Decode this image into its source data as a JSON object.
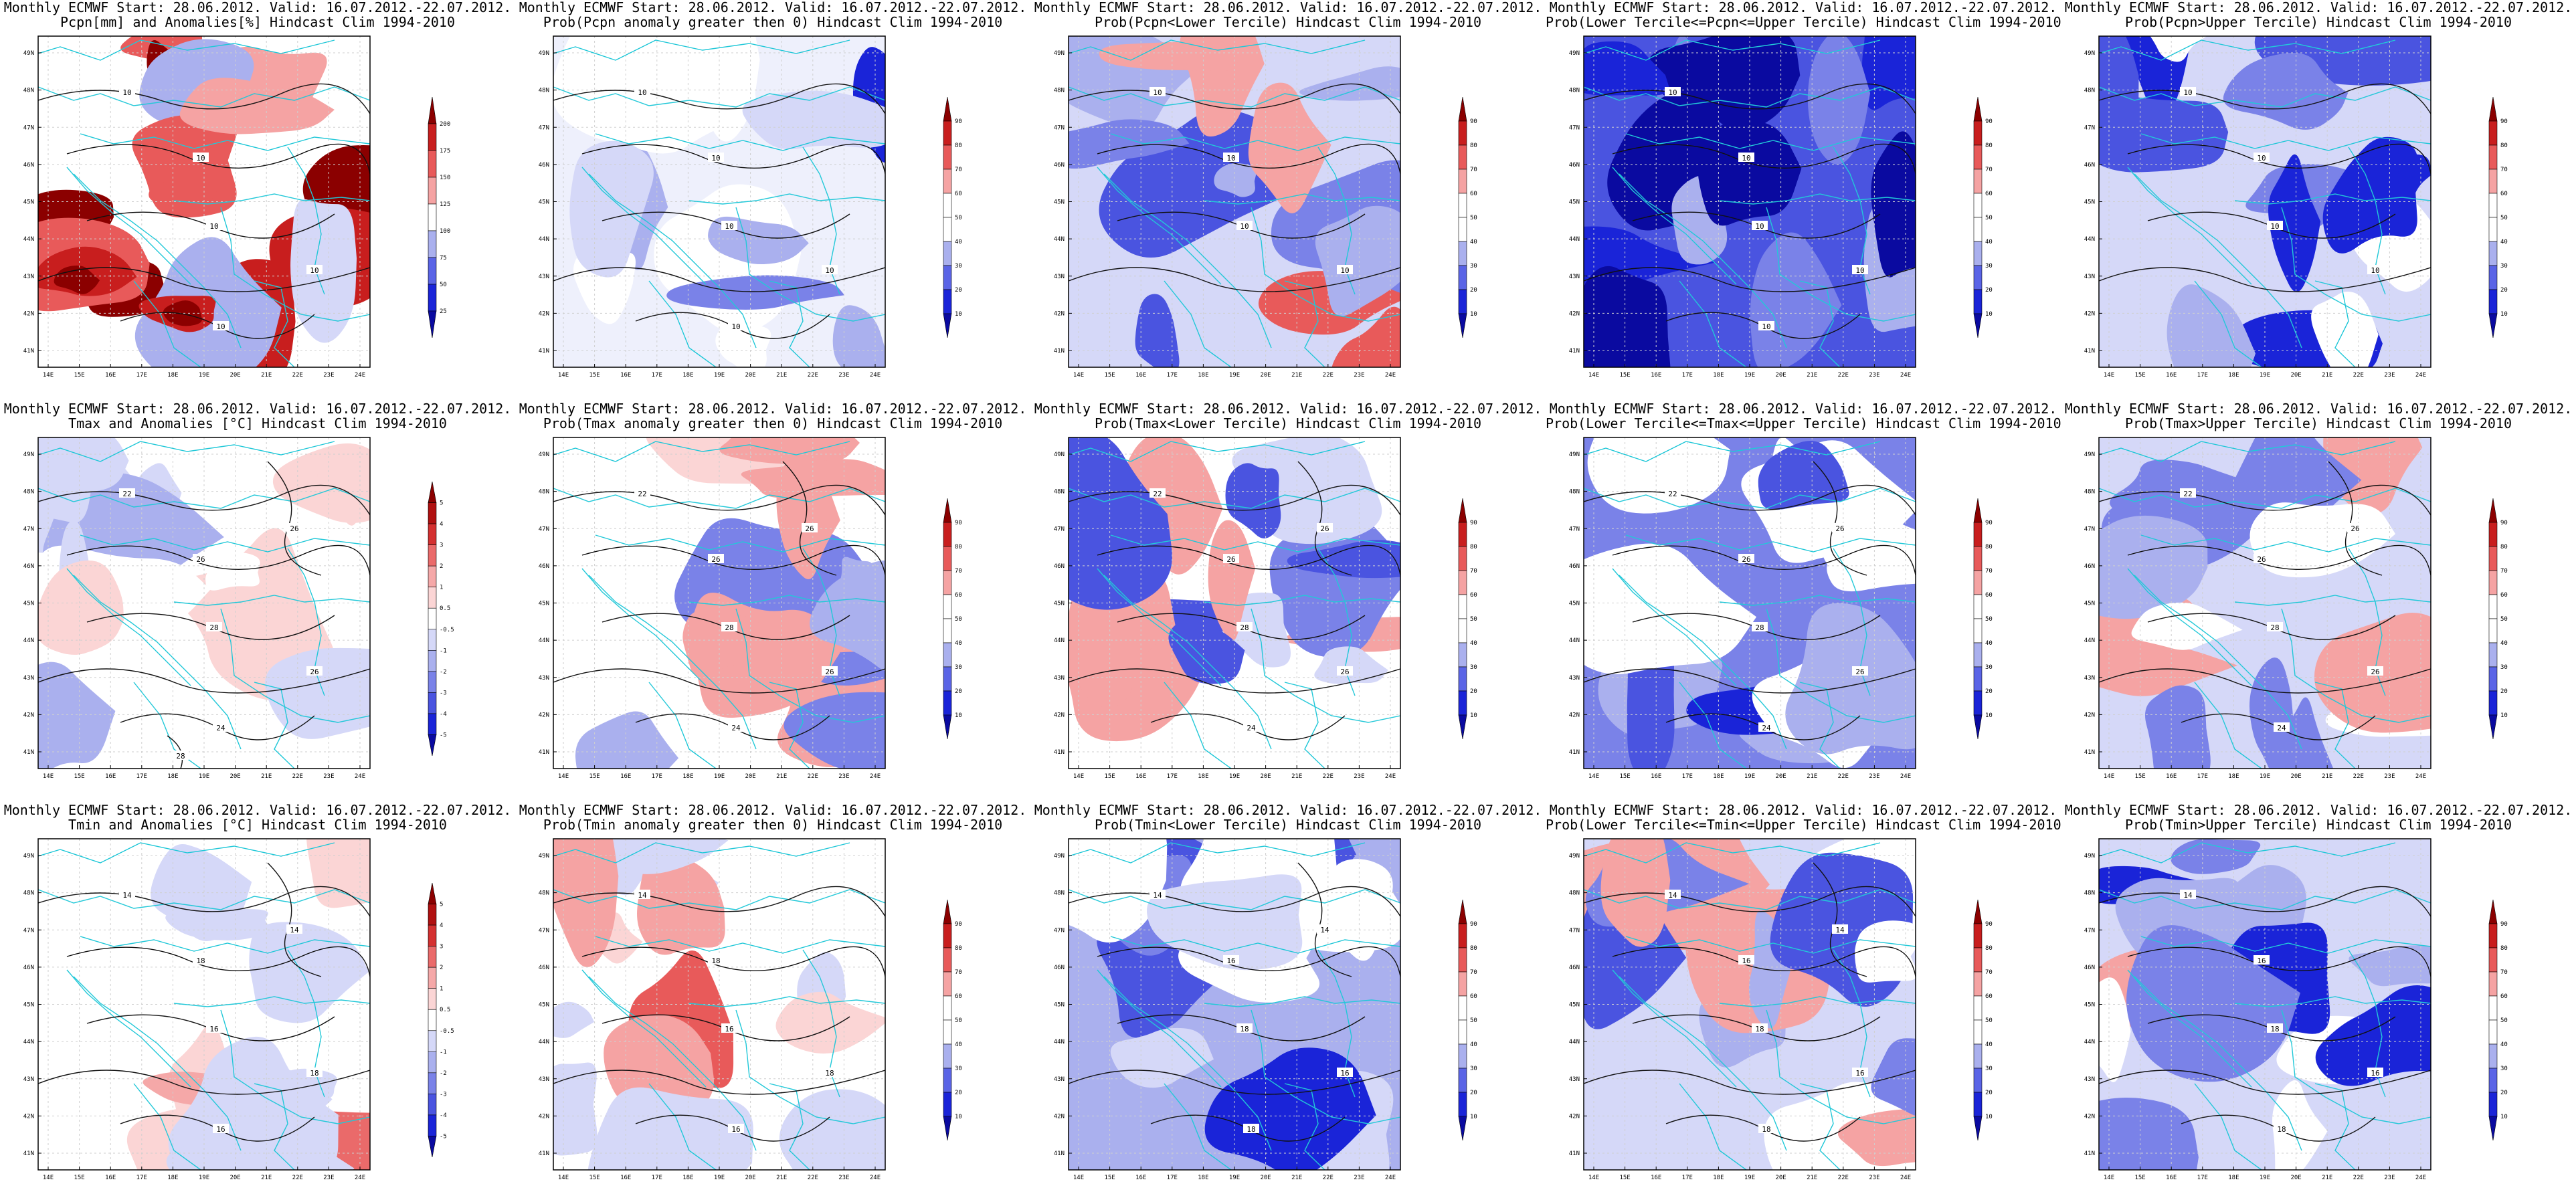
{
  "header_common": "Monthly ECMWF Start: 28.06.2012. Valid: 16.07.2012.-22.07.2012.",
  "map": {
    "lat_labels": [
      "49N",
      "48N",
      "47N",
      "46N",
      "45N",
      "44N",
      "43N",
      "42N",
      "41N"
    ],
    "lon_labels": [
      "14E",
      "15E",
      "16E",
      "17E",
      "18E",
      "19E",
      "20E",
      "21E",
      "22E",
      "23E",
      "24E"
    ]
  },
  "colorbars": {
    "pcpn_anom": {
      "labels": [
        "200",
        "175",
        "150",
        "125",
        "100",
        "75",
        "50",
        "25"
      ],
      "colors": [
        "#8b0000",
        "#c81e1e",
        "#e85a5a",
        "#f5a3a3",
        "#ffffff",
        "#aab0ee",
        "#5a64e6",
        "#1a24d8",
        "#0a0aa0"
      ]
    },
    "prob": {
      "labels": [
        "90",
        "80",
        "70",
        "60",
        "50",
        "40",
        "30",
        "20",
        "10"
      ],
      "colors": [
        "#8b0000",
        "#c81e1e",
        "#e85a5a",
        "#f5a3a3",
        "#ffffff",
        "#ffffff",
        "#aab0ee",
        "#5a64e6",
        "#1a24d8",
        "#0a0aa0"
      ]
    },
    "temp_anom": {
      "labels": [
        "5",
        "4",
        "3",
        "2",
        "1",
        "0.5",
        "-0.5",
        "-1",
        "-2",
        "-3",
        "-4",
        "-5"
      ],
      "colors": [
        "#8b0000",
        "#b01010",
        "#d43030",
        "#ea6a6a",
        "#f5a8a8",
        "#fbd5d5",
        "#ffffff",
        "#d5d8f8",
        "#aab0ee",
        "#7a82e8",
        "#4a54e0",
        "#1a24d8",
        "#0a0aa0"
      ]
    }
  },
  "panels": [
    {
      "title2": "Pcpn[mm] and Anomalies[%] Hindcast Clim 1994-2010",
      "cbar": "pcpn_anom",
      "contours": [
        "10",
        "10",
        "10",
        "10",
        "10"
      ]
    },
    {
      "title2": "Prob(Pcpn anomaly greater then 0) Hindcast Clim 1994-2010",
      "cbar": "prob",
      "contours": [
        "10",
        "10",
        "10",
        "10",
        "10"
      ]
    },
    {
      "title2": "Prob(Pcpn<Lower Tercile) Hindcast Clim 1994-2010",
      "cbar": "prob",
      "contours": [
        "10",
        "10",
        "10",
        "10"
      ]
    },
    {
      "title2": "Prob(Lower Tercile<=Pcpn<=Upper Tercile) Hindcast Clim 1994-2010",
      "cbar": "prob",
      "contours": [
        "10",
        "10",
        "10",
        "10",
        "10"
      ]
    },
    {
      "title2": "Prob(Pcpn>Upper Tercile) Hindcast Clim 1994-2010",
      "cbar": "prob",
      "contours": [
        "10",
        "10",
        "10",
        "10"
      ]
    },
    {
      "title2": "Tmax and Anomalies [°C] Hindcast Clim 1994-2010",
      "cbar": "temp_anom",
      "contours": [
        "22",
        "26",
        "28",
        "26",
        "24",
        "26",
        "28"
      ]
    },
    {
      "title2": "Prob(Tmax anomaly greater then 0) Hindcast Clim 1994-2010",
      "cbar": "prob",
      "contours": [
        "22",
        "26",
        "28",
        "26",
        "24",
        "26"
      ]
    },
    {
      "title2": "Prob(Tmax<Lower Tercile) Hindcast Clim 1994-2010",
      "cbar": "prob",
      "contours": [
        "22",
        "26",
        "28",
        "26",
        "24",
        "26"
      ]
    },
    {
      "title2": "Prob(Lower Tercile<=Tmax<=Upper Tercile) Hindcast Clim 1994-2010",
      "cbar": "prob",
      "contours": [
        "22",
        "26",
        "28",
        "26",
        "24",
        "26"
      ]
    },
    {
      "title2": "Prob(Tmax>Upper Tercile) Hindcast Clim 1994-2010",
      "cbar": "prob",
      "contours": [
        "22",
        "26",
        "28",
        "26",
        "24",
        "26"
      ]
    },
    {
      "title2": "Tmin and Anomalies [°C] Hindcast Clim 1994-2010",
      "cbar": "temp_anom",
      "contours": [
        "14",
        "18",
        "16",
        "18",
        "16",
        "14"
      ]
    },
    {
      "title2": "Prob(Tmin anomaly greater then 0) Hindcast Clim 1994-2010",
      "cbar": "prob",
      "contours": [
        "14",
        "18",
        "16",
        "18",
        "16"
      ]
    },
    {
      "title2": "Prob(Tmin<Lower Tercile) Hindcast Clim 1994-2010",
      "cbar": "prob",
      "contours": [
        "14",
        "16",
        "18",
        "16",
        "18",
        "14"
      ]
    },
    {
      "title2": "Prob(Lower Tercile<=Tmin<=Upper Tercile) Hindcast Clim 1994-2010",
      "cbar": "prob",
      "contours": [
        "14",
        "16",
        "18",
        "16",
        "18",
        "14"
      ]
    },
    {
      "title2": "Prob(Tmin>Upper Tercile) Hindcast Clim 1994-2010",
      "cbar": "prob",
      "contours": [
        "14",
        "16",
        "18",
        "16",
        "18"
      ]
    }
  ]
}
